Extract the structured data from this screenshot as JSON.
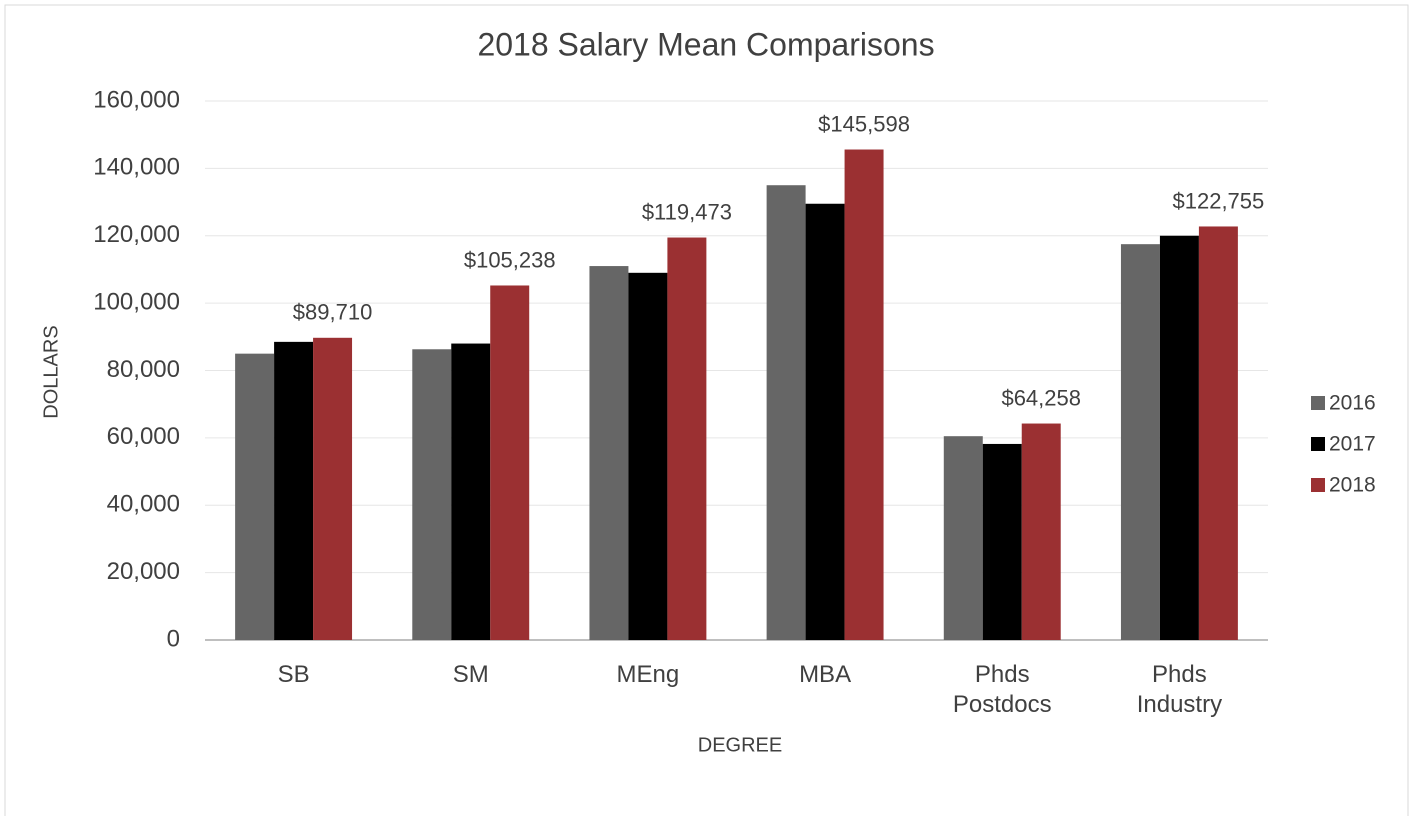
{
  "chart_data": {
    "type": "bar",
    "title": "2018 Salary Mean Comparisons",
    "x_label": "DEGREE",
    "y_label": "DOLLARS",
    "categories": [
      "SB",
      "SM",
      "MEng",
      "MBA",
      "Phds Postdocs",
      "Phds Industry"
    ],
    "series": [
      {
        "name": "2016",
        "color": "#666666",
        "values": [
          85000,
          86300,
          111000,
          135000,
          60500,
          117500
        ]
      },
      {
        "name": "2017",
        "color": "#000000",
        "values": [
          88500,
          88000,
          109000,
          129500,
          58200,
          120000
        ]
      },
      {
        "name": "2018",
        "color": "#9b3032",
        "values": [
          89710,
          105238,
          119473,
          145598,
          64258,
          122755
        ],
        "value_labels": [
          "$89,710",
          "$105,238",
          "$119,473",
          "$145,598",
          "$64,258",
          "$122,755"
        ]
      }
    ],
    "ylim": [
      0,
      160000
    ],
    "yticks": [
      {
        "value": 0,
        "label": "0"
      },
      {
        "value": 20000,
        "label": "20,000"
      },
      {
        "value": 40000,
        "label": "40,000"
      },
      {
        "value": 60000,
        "label": "60,000"
      },
      {
        "value": 80000,
        "label": "80,000"
      },
      {
        "value": 100000,
        "label": "100,000"
      },
      {
        "value": 120000,
        "label": "120,000"
      },
      {
        "value": 140000,
        "label": "140,000"
      },
      {
        "value": 160000,
        "label": "160,000"
      }
    ],
    "grid": true,
    "legend": "right"
  }
}
